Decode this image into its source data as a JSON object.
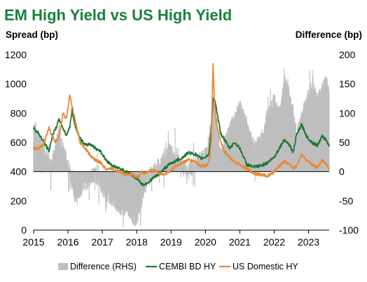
{
  "chart_data": {
    "type": "line",
    "title": "EM High Yield vs US High Yield",
    "ylabel": "Spread (bp)",
    "y2label": "Difference (bp)",
    "xlim": [
      2015.0,
      2023.6
    ],
    "ylim": [
      0,
      1200
    ],
    "y2lim": [
      -100,
      200
    ],
    "x_ticks": [
      "2015",
      "2016",
      "2017",
      "2018",
      "2019",
      "2020",
      "2021",
      "2022",
      "2023"
    ],
    "y_ticks": [
      0,
      200,
      400,
      600,
      800,
      1000,
      1200
    ],
    "y2_ticks": [
      -100,
      -50,
      0,
      50,
      100,
      150,
      200
    ],
    "grid": false,
    "legend_position": "bottom",
    "x": [
      2015.0,
      2015.15,
      2015.3,
      2015.45,
      2015.55,
      2015.65,
      2015.75,
      2015.85,
      2015.95,
      2016.05,
      2016.12,
      2016.2,
      2016.35,
      2016.5,
      2016.65,
      2016.8,
      2016.95,
      2017.1,
      2017.3,
      2017.5,
      2017.7,
      2017.85,
      2017.95,
      2018.05,
      2018.12,
      2018.2,
      2018.35,
      2018.5,
      2018.65,
      2018.8,
      2018.95,
      2019.1,
      2019.3,
      2019.5,
      2019.7,
      2019.85,
      2020.0,
      2020.1,
      2020.17,
      2020.22,
      2020.28,
      2020.35,
      2020.45,
      2020.55,
      2020.7,
      2020.85,
      2021.0,
      2021.2,
      2021.4,
      2021.6,
      2021.8,
      2022.0,
      2022.15,
      2022.3,
      2022.45,
      2022.55,
      2022.65,
      2022.8,
      2022.95,
      2023.1,
      2023.25,
      2023.4,
      2023.5,
      2023.6
    ],
    "series": [
      {
        "name": "Difference (RHS)",
        "axis": "right",
        "style": "bars",
        "color": "#bfbfbf",
        "values": [
          80,
          55,
          40,
          10,
          15,
          45,
          70,
          40,
          20,
          0,
          -20,
          -40,
          -30,
          -20,
          -10,
          -5,
          -20,
          -40,
          -45,
          -60,
          -60,
          -75,
          -80,
          -70,
          -55,
          -30,
          -10,
          0,
          10,
          20,
          40,
          20,
          10,
          0,
          10,
          20,
          30,
          50,
          80,
          120,
          100,
          60,
          30,
          50,
          70,
          90,
          110,
          80,
          40,
          50,
          90,
          120,
          100,
          150,
          130,
          100,
          60,
          90,
          120,
          150,
          120,
          140,
          150,
          140
        ]
      },
      {
        "name": "CEMBI BD HY",
        "axis": "left",
        "style": "line",
        "color": "#1b7a33",
        "values": [
          700,
          660,
          600,
          540,
          650,
          700,
          760,
          700,
          650,
          700,
          820,
          720,
          630,
          580,
          590,
          560,
          540,
          480,
          440,
          420,
          400,
          380,
          360,
          350,
          320,
          310,
          330,
          360,
          380,
          420,
          450,
          470,
          490,
          530,
          520,
          490,
          500,
          520,
          690,
          900,
          880,
          780,
          660,
          620,
          560,
          600,
          560,
          450,
          430,
          440,
          460,
          500,
          560,
          620,
          580,
          530,
          650,
          720,
          640,
          600,
          580,
          640,
          620,
          580
        ]
      },
      {
        "name": "US Domestic HY",
        "axis": "left",
        "style": "line",
        "color": "#e8883a",
        "values": [
          560,
          560,
          590,
          700,
          640,
          600,
          650,
          800,
          760,
          920,
          850,
          760,
          600,
          560,
          510,
          480,
          460,
          420,
          420,
          400,
          380,
          380,
          370,
          360,
          400,
          390,
          400,
          410,
          390,
          380,
          400,
          430,
          460,
          480,
          470,
          440,
          440,
          460,
          600,
          1130,
          800,
          700,
          600,
          540,
          500,
          460,
          450,
          420,
          390,
          380,
          370,
          400,
          440,
          470,
          450,
          420,
          440,
          520,
          470,
          450,
          430,
          480,
          460,
          420
        ]
      }
    ]
  }
}
